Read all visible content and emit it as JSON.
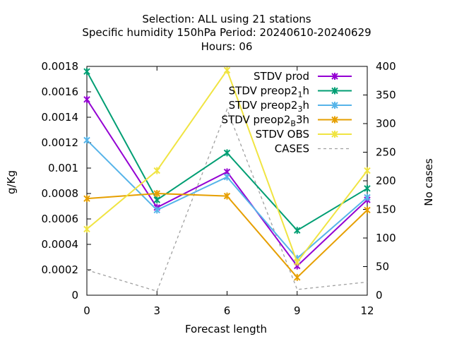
{
  "chart_data": {
    "type": "line",
    "title_lines": [
      "Selection: ALL using    21 stations",
      "Specific humidity 150hPa   Period: 20240610-20240629",
      "Hours:  06"
    ],
    "xlabel": "Forecast length",
    "ylabel": "g/Kg",
    "y2label": "No cases",
    "x": [
      0,
      3,
      6,
      9,
      12
    ],
    "xlim": [
      0,
      12
    ],
    "ylim": [
      0,
      0.0018
    ],
    "y2lim": [
      0,
      400
    ],
    "x_ticks": [
      "0",
      "3",
      "6",
      "9",
      "12"
    ],
    "y_ticks": [
      "0",
      "0.0002",
      "0.0004",
      "0.0006",
      "0.0008",
      "0.001",
      "0.0012",
      "0.0014",
      "0.0016",
      "0.0018"
    ],
    "y2_ticks": [
      "0",
      "50",
      "100",
      "150",
      "200",
      "250",
      "300",
      "350",
      "400"
    ],
    "legend_position": "top-right",
    "series": [
      {
        "name": "STDV prod",
        "name_main": "STDV prod",
        "name_sub": "",
        "name_tail": "",
        "color": "#9400d3",
        "axis": "y1",
        "dashed": false,
        "marker": true,
        "values": [
          0.00154,
          0.00069,
          0.00097,
          0.00023,
          0.00075
        ]
      },
      {
        "name": "STDV preop2_1h",
        "name_main": "STDV preop2",
        "name_sub": "1",
        "name_tail": "h",
        "color": "#009e73",
        "axis": "y1",
        "dashed": false,
        "marker": true,
        "values": [
          0.00176,
          0.00075,
          0.00112,
          0.00051,
          0.00084
        ]
      },
      {
        "name": "STDV preop2_3h",
        "name_main": "STDV preop2",
        "name_sub": "3",
        "name_tail": "h",
        "color": "#56b4e9",
        "axis": "y1",
        "dashed": false,
        "marker": true,
        "values": [
          0.00122,
          0.00067,
          0.00093,
          0.00029,
          0.00077
        ]
      },
      {
        "name": "STDV preop2_B3h",
        "name_main": "STDV preop2",
        "name_sub": "B",
        "name_tail": "3h",
        "color": "#e69f00",
        "axis": "y1",
        "dashed": false,
        "marker": true,
        "values": [
          0.00076,
          0.0008,
          0.00078,
          0.00014,
          0.00067
        ]
      },
      {
        "name": "STDV OBS",
        "name_main": "STDV OBS",
        "name_sub": "",
        "name_tail": "",
        "color": "#f0e442",
        "axis": "y1",
        "dashed": false,
        "marker": true,
        "values": [
          0.00052,
          0.00098,
          0.00177,
          0.00026,
          0.00098
        ]
      },
      {
        "name": "CASES",
        "name_main": "CASES",
        "name_sub": "",
        "name_tail": "",
        "color": "#a0a0a0",
        "axis": "y2",
        "dashed": true,
        "marker": false,
        "values": [
          44,
          7,
          325,
          10,
          23
        ]
      }
    ]
  }
}
